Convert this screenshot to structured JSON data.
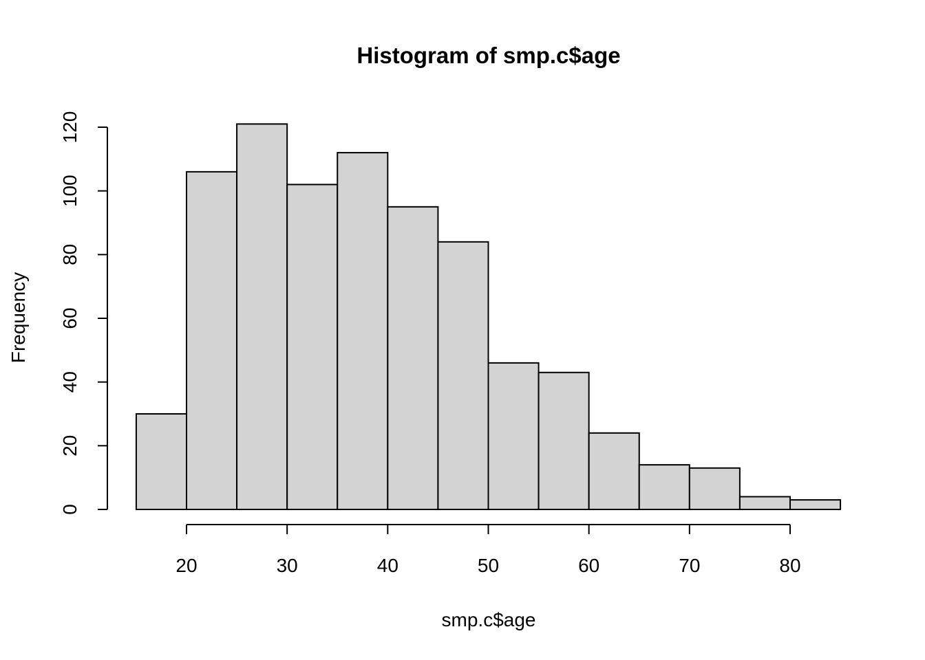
{
  "chart_data": {
    "type": "bar",
    "title": "Histogram of smp.c$age",
    "xlabel": "smp.c$age",
    "ylabel": "Frequency",
    "bins": [
      {
        "start": 15,
        "end": 20,
        "count": 30
      },
      {
        "start": 20,
        "end": 25,
        "count": 106
      },
      {
        "start": 25,
        "end": 30,
        "count": 121
      },
      {
        "start": 30,
        "end": 35,
        "count": 102
      },
      {
        "start": 35,
        "end": 40,
        "count": 112
      },
      {
        "start": 40,
        "end": 45,
        "count": 95
      },
      {
        "start": 45,
        "end": 50,
        "count": 84
      },
      {
        "start": 50,
        "end": 55,
        "count": 46
      },
      {
        "start": 55,
        "end": 60,
        "count": 43
      },
      {
        "start": 60,
        "end": 65,
        "count": 24
      },
      {
        "start": 65,
        "end": 70,
        "count": 14
      },
      {
        "start": 70,
        "end": 75,
        "count": 13
      },
      {
        "start": 75,
        "end": 80,
        "count": 4
      },
      {
        "start": 80,
        "end": 85,
        "count": 3
      }
    ],
    "xlim": [
      15,
      85
    ],
    "ylim": [
      0,
      121
    ],
    "x_ticks": [
      20,
      30,
      40,
      50,
      60,
      70,
      80
    ],
    "y_ticks": [
      0,
      20,
      40,
      60,
      80,
      100,
      120
    ],
    "bar_fill": "#d3d3d3",
    "bar_stroke": "#000000",
    "grid": false,
    "legend": "none"
  }
}
